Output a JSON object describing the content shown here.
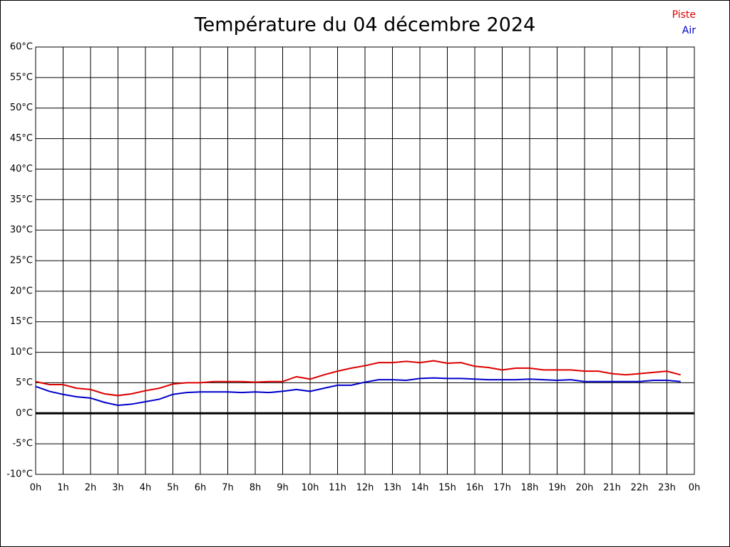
{
  "chart_data": {
    "type": "line",
    "title": "Température du 04 décembre 2024",
    "x": [
      0,
      0.5,
      1,
      1.5,
      2,
      2.5,
      3,
      3.5,
      4,
      4.5,
      5,
      5.5,
      6,
      6.5,
      7,
      7.5,
      8,
      8.5,
      9,
      9.5,
      10,
      10.5,
      11,
      11.5,
      12,
      12.5,
      13,
      13.5,
      14,
      14.5,
      15,
      15.5,
      16,
      16.5,
      17,
      17.5,
      18,
      18.5,
      19,
      19.5,
      20,
      20.5,
      21,
      21.5,
      22,
      22.5,
      23,
      23.5
    ],
    "series": [
      {
        "name": "Piste",
        "color": "#dd0000",
        "values": [
          5.2,
          4.7,
          4.7,
          4.1,
          3.9,
          3.2,
          2.9,
          3.2,
          3.7,
          4.1,
          4.8,
          5.0,
          5.0,
          5.2,
          5.2,
          5.2,
          5.1,
          5.2,
          5.2,
          6.0,
          5.6,
          6.3,
          6.9,
          7.4,
          7.8,
          8.3,
          8.3,
          8.5,
          8.3,
          8.6,
          8.2,
          8.3,
          7.7,
          7.5,
          7.1,
          7.4,
          7.4,
          7.1,
          7.1,
          7.1,
          6.9,
          6.9,
          6.5,
          6.3,
          6.5,
          6.7,
          6.9,
          6.3
        ]
      },
      {
        "name": "Air",
        "color": "#0000cc",
        "values": [
          4.4,
          3.6,
          3.1,
          2.7,
          2.5,
          1.8,
          1.3,
          1.5,
          1.9,
          2.3,
          3.1,
          3.4,
          3.5,
          3.5,
          3.5,
          3.4,
          3.5,
          3.4,
          3.6,
          3.9,
          3.6,
          4.1,
          4.6,
          4.6,
          5.1,
          5.5,
          5.5,
          5.4,
          5.7,
          5.8,
          5.7,
          5.7,
          5.6,
          5.5,
          5.5,
          5.5,
          5.6,
          5.5,
          5.4,
          5.5,
          5.2,
          5.2,
          5.2,
          5.2,
          5.2,
          5.4,
          5.4,
          5.2
        ]
      }
    ],
    "xlim": [
      0,
      24
    ],
    "xticks": [
      {
        "value": 0,
        "label": "0h"
      },
      {
        "value": 1,
        "label": "1h"
      },
      {
        "value": 2,
        "label": "2h"
      },
      {
        "value": 3,
        "label": "3h"
      },
      {
        "value": 4,
        "label": "4h"
      },
      {
        "value": 5,
        "label": "5h"
      },
      {
        "value": 6,
        "label": "6h"
      },
      {
        "value": 7,
        "label": "7h"
      },
      {
        "value": 8,
        "label": "8h"
      },
      {
        "value": 9,
        "label": "9h"
      },
      {
        "value": 10,
        "label": "10h"
      },
      {
        "value": 11,
        "label": "11h"
      },
      {
        "value": 12,
        "label": "12h"
      },
      {
        "value": 13,
        "label": "13h"
      },
      {
        "value": 14,
        "label": "14h"
      },
      {
        "value": 15,
        "label": "15h"
      },
      {
        "value": 16,
        "label": "16h"
      },
      {
        "value": 17,
        "label": "17h"
      },
      {
        "value": 18,
        "label": "18h"
      },
      {
        "value": 19,
        "label": "19h"
      },
      {
        "value": 20,
        "label": "20h"
      },
      {
        "value": 21,
        "label": "21h"
      },
      {
        "value": 22,
        "label": "22h"
      },
      {
        "value": 23,
        "label": "23h"
      },
      {
        "value": 24,
        "label": "0h"
      }
    ],
    "ylim": [
      -10,
      60
    ],
    "yticks": [
      {
        "value": -10,
        "label": "-10°C"
      },
      {
        "value": -5,
        "label": "-5°C"
      },
      {
        "value": 0,
        "label": "0°C"
      },
      {
        "value": 5,
        "label": "5°C"
      },
      {
        "value": 10,
        "label": "10°C"
      },
      {
        "value": 15,
        "label": "15°C"
      },
      {
        "value": 20,
        "label": "20°C"
      },
      {
        "value": 25,
        "label": "25°C"
      },
      {
        "value": 30,
        "label": "30°C"
      },
      {
        "value": 35,
        "label": "35°C"
      },
      {
        "value": 40,
        "label": "40°C"
      },
      {
        "value": 45,
        "label": "45°C"
      },
      {
        "value": 50,
        "label": "50°C"
      },
      {
        "value": 55,
        "label": "55°C"
      },
      {
        "value": 60,
        "label": "60°C"
      }
    ],
    "grid": true,
    "zero_line": true,
    "legend": "upper right"
  }
}
